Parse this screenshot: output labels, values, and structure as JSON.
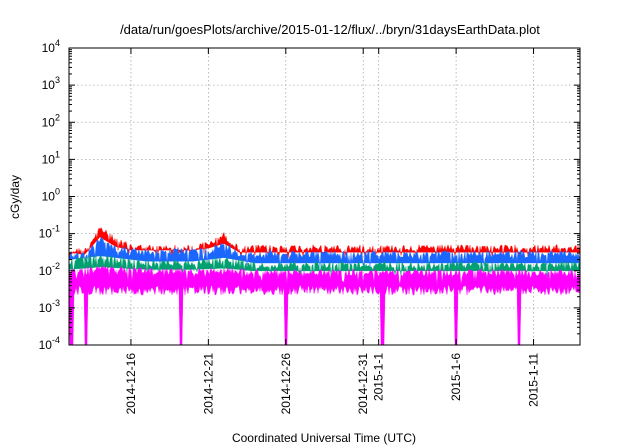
{
  "chart_data": {
    "type": "area",
    "title": "/data/run/goesPlots/archive/2015-01-12/flux/../bryn/31daysEarthData.plot",
    "xlabel": "Coordinated Universal Time (UTC)",
    "ylabel": "cGy/day",
    "x_range": [
      "2014-12-12",
      "2015-01-14"
    ],
    "ylim": [
      0.0001,
      10000
    ],
    "y_scale": "log",
    "grid": true,
    "legend": "none",
    "y_ticks": [
      {
        "value": 0.0001,
        "base": "10",
        "exp": "-4"
      },
      {
        "value": 0.001,
        "base": "10",
        "exp": "-3"
      },
      {
        "value": 0.01,
        "base": "10",
        "exp": "-2"
      },
      {
        "value": 0.1,
        "base": "10",
        "exp": "-1"
      },
      {
        "value": 1,
        "base": "10",
        "exp": "0"
      },
      {
        "value": 10,
        "base": "10",
        "exp": "1"
      },
      {
        "value": 100,
        "base": "10",
        "exp": "2"
      },
      {
        "value": 1000,
        "base": "10",
        "exp": "3"
      },
      {
        "value": 10000,
        "base": "10",
        "exp": "4"
      }
    ],
    "x_ticks": [
      {
        "date": "2014-12-16",
        "label": "2014-12-16"
      },
      {
        "date": "2014-12-21",
        "label": "2014-12-21"
      },
      {
        "date": "2014-12-26",
        "label": "2014-12-26"
      },
      {
        "date": "2014-12-31",
        "label": "2014-12-31"
      },
      {
        "date": "2015-01-01",
        "label": "2015-1-1"
      },
      {
        "date": "2015-01-06",
        "label": "2015-1-6"
      },
      {
        "date": "2015-01-11",
        "label": "2015-1-11"
      }
    ],
    "series_colors": [
      "#ff0000",
      "#1a66ff",
      "#00a070",
      "#ff00ff"
    ],
    "series": [
      {
        "color": "#ff0000",
        "x": [
          "2014-12-12",
          "2014-12-13",
          "2014-12-14",
          "2014-12-15",
          "2014-12-16",
          "2014-12-17",
          "2014-12-18",
          "2014-12-19",
          "2014-12-20",
          "2014-12-21",
          "2014-12-22",
          "2014-12-23",
          "2014-12-24",
          "2014-12-26",
          "2014-12-28",
          "2014-12-30",
          "2015-01-01",
          "2015-01-03",
          "2015-01-05",
          "2015-01-07",
          "2015-01-09",
          "2015-01-11",
          "2015-01-13",
          "2015-01-14"
        ],
        "values": [
          0.045,
          0.04,
          0.17,
          0.08,
          0.055,
          0.05,
          0.05,
          0.05,
          0.05,
          0.065,
          0.11,
          0.045,
          0.05,
          0.05,
          0.05,
          0.05,
          0.05,
          0.05,
          0.05,
          0.05,
          0.05,
          0.05,
          0.05,
          0.05
        ]
      },
      {
        "color": "#1a66ff",
        "x": [
          "2014-12-12",
          "2014-12-13",
          "2014-12-14",
          "2014-12-15",
          "2014-12-16",
          "2014-12-17",
          "2014-12-18",
          "2014-12-19",
          "2014-12-20",
          "2014-12-21",
          "2014-12-22",
          "2014-12-23",
          "2014-12-24",
          "2014-12-26",
          "2014-12-28",
          "2014-12-30",
          "2015-01-01",
          "2015-01-03",
          "2015-01-05",
          "2015-01-07",
          "2015-01-09",
          "2015-01-11",
          "2015-01-13",
          "2015-01-14"
        ],
        "values": [
          0.035,
          0.03,
          0.09,
          0.05,
          0.04,
          0.04,
          0.04,
          0.04,
          0.04,
          0.045,
          0.06,
          0.035,
          0.035,
          0.035,
          0.035,
          0.035,
          0.035,
          0.035,
          0.035,
          0.035,
          0.035,
          0.035,
          0.035,
          0.035
        ]
      },
      {
        "color": "#00a070",
        "x": [
          "2014-12-12",
          "2014-12-14",
          "2014-12-17",
          "2014-12-20",
          "2014-12-22",
          "2014-12-24",
          "2014-12-27",
          "2014-12-30",
          "2015-01-02",
          "2015-01-05",
          "2015-01-08",
          "2015-01-11",
          "2015-01-14"
        ],
        "values": [
          0.022,
          0.028,
          0.02,
          0.02,
          0.025,
          0.018,
          0.018,
          0.018,
          0.018,
          0.018,
          0.018,
          0.018,
          0.018
        ]
      },
      {
        "color": "#ff00ff",
        "x": [
          "2014-12-12",
          "2014-12-14",
          "2014-12-17",
          "2014-12-20",
          "2014-12-22",
          "2014-12-24",
          "2014-12-27",
          "2014-12-30",
          "2015-01-02",
          "2015-01-05",
          "2015-01-08",
          "2015-01-11",
          "2015-01-14"
        ],
        "values": [
          0.012,
          0.014,
          0.012,
          0.012,
          0.013,
          0.011,
          0.011,
          0.011,
          0.011,
          0.011,
          0.011,
          0.011,
          0.011
        ]
      }
    ],
    "magenta_floor": 0.003,
    "dropout_dates": [
      "2014-12-12T04:00",
      "2014-12-13T02:00",
      "2014-12-19T06:00",
      "2014-12-26T00:00",
      "2015-01-01T06:00",
      "2015-01-06T00:00",
      "2015-01-10T02:00"
    ]
  }
}
